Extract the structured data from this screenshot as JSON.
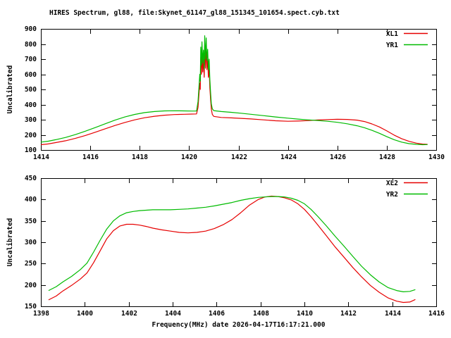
{
  "title": "HIRES Spectrum, gl88, file:Skynet_61147_gl88_151345_101654.spect.cyb.txt",
  "xlabel": "Frequency(MHz) date 2026-04-17T16:17:21.000",
  "colors": {
    "axis": "#000000",
    "background": "#ffffff",
    "red_series": "#e60000",
    "green_series": "#00bb00"
  },
  "chart_data": [
    {
      "type": "line",
      "ylabel": "Uncalibrated",
      "xlim": [
        1414,
        1430
      ],
      "ylim": [
        100,
        900
      ],
      "xticks": [
        1414,
        1416,
        1418,
        1420,
        1422,
        1424,
        1426,
        1428,
        1430
      ],
      "yticks": [
        100,
        200,
        300,
        400,
        500,
        600,
        700,
        800,
        900
      ],
      "grid": false,
      "legend_position": "top-right",
      "series": [
        {
          "name": "XL1",
          "color": "#e60000",
          "points": [
            [
              1414.0,
              135
            ],
            [
              1414.3,
              140
            ],
            [
              1414.6,
              149
            ],
            [
              1415.0,
              161
            ],
            [
              1415.4,
              177
            ],
            [
              1415.8,
              196
            ],
            [
              1416.2,
              217
            ],
            [
              1416.6,
              240
            ],
            [
              1417.0,
              262
            ],
            [
              1417.4,
              282
            ],
            [
              1417.8,
              299
            ],
            [
              1418.2,
              313
            ],
            [
              1418.6,
              323
            ],
            [
              1419.0,
              330
            ],
            [
              1419.4,
              334
            ],
            [
              1419.8,
              336
            ],
            [
              1420.1,
              337
            ],
            [
              1420.3,
              338
            ],
            [
              1420.36,
              380
            ],
            [
              1420.4,
              470
            ],
            [
              1420.43,
              540
            ],
            [
              1420.45,
              500
            ],
            [
              1420.47,
              710
            ],
            [
              1420.5,
              600
            ],
            [
              1420.52,
              745
            ],
            [
              1420.55,
              615
            ],
            [
              1420.58,
              700
            ],
            [
              1420.61,
              580
            ],
            [
              1420.63,
              785
            ],
            [
              1420.66,
              640
            ],
            [
              1420.69,
              775
            ],
            [
              1420.72,
              630
            ],
            [
              1420.75,
              700
            ],
            [
              1420.78,
              580
            ],
            [
              1420.81,
              640
            ],
            [
              1420.84,
              510
            ],
            [
              1420.87,
              430
            ],
            [
              1420.9,
              370
            ],
            [
              1420.94,
              335
            ],
            [
              1421.0,
              322
            ],
            [
              1421.3,
              315
            ],
            [
              1421.7,
              312
            ],
            [
              1422.1,
              309
            ],
            [
              1422.5,
              305
            ],
            [
              1423.0,
              299
            ],
            [
              1423.5,
              293
            ],
            [
              1424.0,
              290
            ],
            [
              1424.4,
              291
            ],
            [
              1424.8,
              294
            ],
            [
              1425.2,
              298
            ],
            [
              1425.6,
              301
            ],
            [
              1426.0,
              303
            ],
            [
              1426.4,
              302
            ],
            [
              1426.8,
              297
            ],
            [
              1427.1,
              288
            ],
            [
              1427.4,
              272
            ],
            [
              1427.7,
              252
            ],
            [
              1428.0,
              226
            ],
            [
              1428.3,
              198
            ],
            [
              1428.6,
              175
            ],
            [
              1428.9,
              157
            ],
            [
              1429.2,
              145
            ],
            [
              1429.45,
              139
            ],
            [
              1429.65,
              137
            ]
          ]
        },
        {
          "name": "YR1",
          "color": "#00bb00",
          "points": [
            [
              1414.0,
              152
            ],
            [
              1414.3,
              158
            ],
            [
              1414.6,
              168
            ],
            [
              1415.0,
              183
            ],
            [
              1415.4,
              202
            ],
            [
              1415.8,
              224
            ],
            [
              1416.2,
              248
            ],
            [
              1416.6,
              273
            ],
            [
              1417.0,
              297
            ],
            [
              1417.4,
              318
            ],
            [
              1417.8,
              335
            ],
            [
              1418.2,
              347
            ],
            [
              1418.6,
              354
            ],
            [
              1419.0,
              358
            ],
            [
              1419.4,
              359
            ],
            [
              1419.8,
              358
            ],
            [
              1420.1,
              357
            ],
            [
              1420.3,
              357
            ],
            [
              1420.36,
              420
            ],
            [
              1420.4,
              520
            ],
            [
              1420.43,
              600
            ],
            [
              1420.45,
              555
            ],
            [
              1420.47,
              780
            ],
            [
              1420.5,
              660
            ],
            [
              1420.52,
              815
            ],
            [
              1420.55,
              675
            ],
            [
              1420.58,
              760
            ],
            [
              1420.61,
              635
            ],
            [
              1420.63,
              855
            ],
            [
              1420.66,
              700
            ],
            [
              1420.69,
              840
            ],
            [
              1420.72,
              690
            ],
            [
              1420.75,
              765
            ],
            [
              1420.78,
              630
            ],
            [
              1420.81,
              700
            ],
            [
              1420.84,
              565
            ],
            [
              1420.87,
              475
            ],
            [
              1420.9,
              405
            ],
            [
              1420.94,
              372
            ],
            [
              1421.0,
              360
            ],
            [
              1421.3,
              354
            ],
            [
              1421.7,
              349
            ],
            [
              1422.1,
              343
            ],
            [
              1422.5,
              336
            ],
            [
              1423.0,
              327
            ],
            [
              1423.5,
              318
            ],
            [
              1424.0,
              310
            ],
            [
              1424.4,
              304
            ],
            [
              1424.8,
              299
            ],
            [
              1425.2,
              295
            ],
            [
              1425.6,
              290
            ],
            [
              1426.0,
              283
            ],
            [
              1426.4,
              273
            ],
            [
              1426.8,
              260
            ],
            [
              1427.1,
              247
            ],
            [
              1427.4,
              230
            ],
            [
              1427.7,
              210
            ],
            [
              1428.0,
              188
            ],
            [
              1428.3,
              168
            ],
            [
              1428.6,
              152
            ],
            [
              1428.9,
              142
            ],
            [
              1429.2,
              137
            ],
            [
              1429.45,
              135
            ],
            [
              1429.65,
              136
            ]
          ]
        }
      ]
    },
    {
      "type": "line",
      "ylabel": "Uncalibrated",
      "xlim": [
        1398,
        1416
      ],
      "ylim": [
        150,
        450
      ],
      "xticks": [
        1398,
        1400,
        1402,
        1404,
        1406,
        1408,
        1410,
        1412,
        1414,
        1416
      ],
      "yticks": [
        150,
        200,
        250,
        300,
        350,
        400,
        450
      ],
      "grid": false,
      "legend_position": "top-right",
      "series": [
        {
          "name": "XL2",
          "color": "#e60000",
          "points": [
            [
              1398.35,
              165
            ],
            [
              1398.7,
              174
            ],
            [
              1399.0,
              186
            ],
            [
              1399.4,
              199
            ],
            [
              1399.8,
              214
            ],
            [
              1400.1,
              228
            ],
            [
              1400.4,
              252
            ],
            [
              1400.7,
              280
            ],
            [
              1401.0,
              308
            ],
            [
              1401.3,
              327
            ],
            [
              1401.6,
              338
            ],
            [
              1401.9,
              342
            ],
            [
              1402.2,
              342
            ],
            [
              1402.5,
              340
            ],
            [
              1402.8,
              337
            ],
            [
              1403.1,
              333
            ],
            [
              1403.5,
              329
            ],
            [
              1403.9,
              326
            ],
            [
              1404.3,
              323
            ],
            [
              1404.7,
              322
            ],
            [
              1405.1,
              323
            ],
            [
              1405.5,
              326
            ],
            [
              1405.9,
              332
            ],
            [
              1406.3,
              341
            ],
            [
              1406.7,
              353
            ],
            [
              1407.1,
              369
            ],
            [
              1407.5,
              387
            ],
            [
              1407.9,
              400
            ],
            [
              1408.2,
              406
            ],
            [
              1408.5,
              408
            ],
            [
              1408.8,
              407
            ],
            [
              1409.1,
              404
            ],
            [
              1409.4,
              399
            ],
            [
              1409.7,
              390
            ],
            [
              1410.0,
              377
            ],
            [
              1410.3,
              360
            ],
            [
              1410.6,
              341
            ],
            [
              1411.0,
              315
            ],
            [
              1411.4,
              289
            ],
            [
              1411.8,
              265
            ],
            [
              1412.2,
              241
            ],
            [
              1412.6,
              219
            ],
            [
              1413.0,
              199
            ],
            [
              1413.4,
              183
            ],
            [
              1413.8,
              170
            ],
            [
              1414.2,
              162
            ],
            [
              1414.5,
              159
            ],
            [
              1414.8,
              160
            ],
            [
              1415.05,
              166
            ]
          ]
        },
        {
          "name": "YR2",
          "color": "#00bb00",
          "points": [
            [
              1398.35,
              187
            ],
            [
              1398.7,
              196
            ],
            [
              1399.0,
              207
            ],
            [
              1399.4,
              220
            ],
            [
              1399.8,
              236
            ],
            [
              1400.1,
              251
            ],
            [
              1400.4,
              277
            ],
            [
              1400.7,
              305
            ],
            [
              1401.0,
              331
            ],
            [
              1401.3,
              350
            ],
            [
              1401.6,
              362
            ],
            [
              1401.9,
              369
            ],
            [
              1402.2,
              372
            ],
            [
              1402.5,
              374
            ],
            [
              1402.8,
              375
            ],
            [
              1403.1,
              376
            ],
            [
              1403.5,
              376
            ],
            [
              1403.9,
              376
            ],
            [
              1404.3,
              377
            ],
            [
              1404.7,
              378
            ],
            [
              1405.1,
              380
            ],
            [
              1405.5,
              382
            ],
            [
              1405.9,
              385
            ],
            [
              1406.3,
              389
            ],
            [
              1406.7,
              393
            ],
            [
              1407.1,
              398
            ],
            [
              1407.5,
              402
            ],
            [
              1407.9,
              405
            ],
            [
              1408.2,
              406
            ],
            [
              1408.5,
              407
            ],
            [
              1408.8,
              407
            ],
            [
              1409.1,
              406
            ],
            [
              1409.4,
              403
            ],
            [
              1409.7,
              398
            ],
            [
              1410.0,
              390
            ],
            [
              1410.3,
              377
            ],
            [
              1410.6,
              361
            ],
            [
              1411.0,
              338
            ],
            [
              1411.4,
              314
            ],
            [
              1411.8,
              291
            ],
            [
              1412.2,
              267
            ],
            [
              1412.6,
              244
            ],
            [
              1413.0,
              224
            ],
            [
              1413.4,
              207
            ],
            [
              1413.8,
              194
            ],
            [
              1414.2,
              187
            ],
            [
              1414.5,
              184
            ],
            [
              1414.8,
              185
            ],
            [
              1415.05,
              189
            ]
          ]
        }
      ]
    }
  ]
}
